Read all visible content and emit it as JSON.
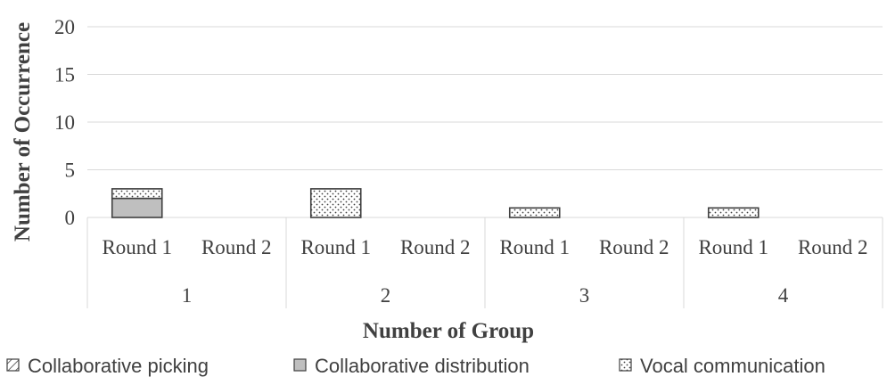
{
  "chart_data": {
    "type": "bar",
    "stacked": true,
    "title": "",
    "xlabel": "Number of Group",
    "ylabel": "Number of Occurrence",
    "ylim": [
      0,
      20
    ],
    "yticks": [
      "0",
      "5",
      "10",
      "15",
      "20"
    ],
    "groups": [
      {
        "label": "1",
        "rounds": [
          "Round 1",
          "Round 2"
        ]
      },
      {
        "label": "2",
        "rounds": [
          "Round 1",
          "Round 2"
        ]
      },
      {
        "label": "3",
        "rounds": [
          "Round 1",
          "Round 2"
        ]
      },
      {
        "label": "4",
        "rounds": [
          "Round 1",
          "Round 2"
        ]
      }
    ],
    "categories": [
      "1-Round 1",
      "1-Round 2",
      "2-Round 1",
      "2-Round 2",
      "3-Round 1",
      "3-Round 2",
      "4-Round 1",
      "4-Round 2"
    ],
    "series": [
      {
        "name": "Collaborative picking",
        "pattern": "diagonal-hatch",
        "values": [
          0,
          0,
          0,
          0,
          0,
          0,
          0,
          0
        ]
      },
      {
        "name": "Collaborative distribution",
        "pattern": "solid-gray",
        "values": [
          2,
          0,
          0,
          0,
          0,
          0,
          0,
          0
        ]
      },
      {
        "name": "Vocal communication",
        "pattern": "dots",
        "values": [
          1,
          0,
          3,
          0,
          1,
          0,
          1,
          0
        ]
      }
    ],
    "grid": true,
    "legend_position": "bottom"
  },
  "colors": {
    "gridline": "#d9d9d9",
    "bar_edge": "#404040",
    "gray_fill": "#bfbfbf",
    "text": "#404040"
  }
}
